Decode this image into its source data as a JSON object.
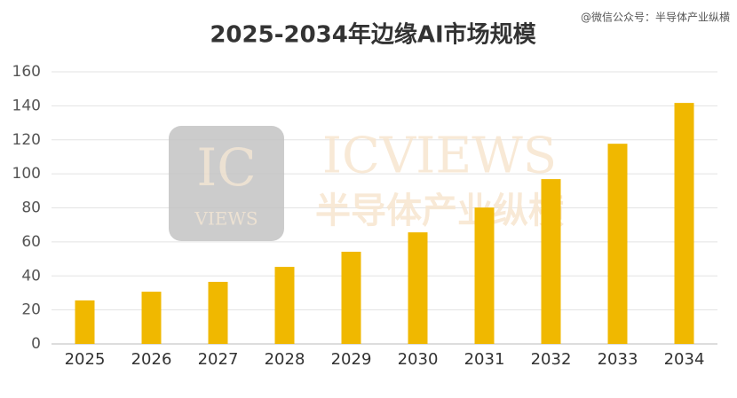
{
  "chart_data": {
    "type": "bar",
    "title": "2025-2034年边缘AI市场规模",
    "source_note": "@微信公众号：半导体产业纵横",
    "watermark": {
      "logo_big": "IC",
      "logo_small": "VIEWS",
      "brand": "ICVIEWS",
      "brand_cn": "半导体产业纵横"
    },
    "categories": [
      "2025",
      "2026",
      "2027",
      "2028",
      "2029",
      "2030",
      "2031",
      "2032",
      "2033",
      "2034"
    ],
    "values": [
      25.6,
      30.7,
      36.5,
      45.3,
      54.2,
      65.6,
      80.2,
      96.9,
      117.7,
      141.7
    ],
    "color": "#f0b800",
    "ylim": [
      0,
      160
    ],
    "yticks": [
      0,
      20,
      40,
      60,
      80,
      100,
      120,
      140,
      160
    ],
    "grid": true
  }
}
